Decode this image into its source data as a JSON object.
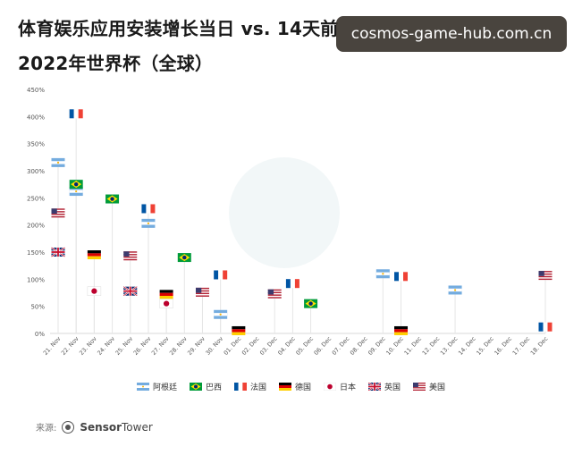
{
  "title_line1": "体育娱乐应用安装增长当日 vs. 14天前",
  "title_line2": "2022年世界杯（全球）",
  "watermark": "cosmos-game-hub.com.cn",
  "source_label": "来源:",
  "source_brand_a": "Sensor",
  "source_brand_b": "Tower",
  "chart_data": {
    "type": "scatter",
    "title": "体育娱乐应用安装增长当日 vs. 14天前 2022年世界杯（全球）",
    "ylim": [
      0,
      450
    ],
    "yticks": [
      0,
      50,
      100,
      150,
      200,
      250,
      300,
      350,
      400,
      450
    ],
    "ytick_labels": [
      "0%",
      "50%",
      "100%",
      "150%",
      "200%",
      "250%",
      "300%",
      "350%",
      "400%",
      "450%"
    ],
    "categories": [
      "21. Nov",
      "22. Nov",
      "23. Nov",
      "24. Nov",
      "25. Nov",
      "26. Nov",
      "27. Nov",
      "28. Nov",
      "29. Nov",
      "30. Nov",
      "01. Dec",
      "02. Dec",
      "03. Dec",
      "04. Dec",
      "05. Dec",
      "06. Dec",
      "07. Dec",
      "08. Dec",
      "09. Dec",
      "10. Dec",
      "11. Dec",
      "12. Dec",
      "13. Dec",
      "14. Dec",
      "15. Dec",
      "16. Dec",
      "17. Dec",
      "18. Dec"
    ],
    "legend_position": "bottom",
    "series": [
      {
        "name": "阿根廷",
        "flag": "argentina",
        "points": [
          {
            "x": "21. Nov",
            "y": 315
          },
          {
            "x": "22. Nov",
            "y": 262
          },
          {
            "x": "26. Nov",
            "y": 203
          },
          {
            "x": "30. Nov",
            "y": 35
          },
          {
            "x": "09. Dec",
            "y": 110
          },
          {
            "x": "13. Dec",
            "y": 80
          }
        ]
      },
      {
        "name": "巴西",
        "flag": "brazil",
        "points": [
          {
            "x": "22. Nov",
            "y": 275
          },
          {
            "x": "24. Nov",
            "y": 248
          },
          {
            "x": "28. Nov",
            "y": 140
          },
          {
            "x": "05. Dec",
            "y": 55
          }
        ]
      },
      {
        "name": "法国",
        "flag": "france",
        "points": [
          {
            "x": "22. Nov",
            "y": 405
          },
          {
            "x": "26. Nov",
            "y": 230
          },
          {
            "x": "30. Nov",
            "y": 108
          },
          {
            "x": "04. Dec",
            "y": 92
          },
          {
            "x": "10. Dec",
            "y": 105
          },
          {
            "x": "18. Dec",
            "y": 12
          }
        ]
      },
      {
        "name": "德国",
        "flag": "germany",
        "points": [
          {
            "x": "23. Nov",
            "y": 145
          },
          {
            "x": "27. Nov",
            "y": 72
          },
          {
            "x": "01. Dec",
            "y": 5
          },
          {
            "x": "10. Dec",
            "y": 5
          }
        ]
      },
      {
        "name": "日本",
        "flag": "japan",
        "points": [
          {
            "x": "23. Nov",
            "y": 78
          },
          {
            "x": "27. Nov",
            "y": 55
          }
        ]
      },
      {
        "name": "英国",
        "flag": "uk",
        "points": [
          {
            "x": "21. Nov",
            "y": 150
          },
          {
            "x": "25. Nov",
            "y": 78
          }
        ]
      },
      {
        "name": "美国",
        "flag": "usa",
        "points": [
          {
            "x": "21. Nov",
            "y": 222
          },
          {
            "x": "25. Nov",
            "y": 143
          },
          {
            "x": "29. Nov",
            "y": 76
          },
          {
            "x": "03. Dec",
            "y": 73
          },
          {
            "x": "18. Dec",
            "y": 107
          }
        ]
      }
    ],
    "colors": {
      "argentina_blue": "#74acdf",
      "brazil_green": "#009b3a",
      "brazil_yellow": "#fedf00",
      "france_blue": "#0055a4",
      "france_red": "#ef4135",
      "germany_red": "#dd0000",
      "germany_gold": "#ffce00",
      "japan_red": "#bc002d",
      "uk_blue": "#012169",
      "uk_red": "#c8102e",
      "usa_red": "#b22234",
      "usa_blue": "#3c3b6e"
    }
  }
}
